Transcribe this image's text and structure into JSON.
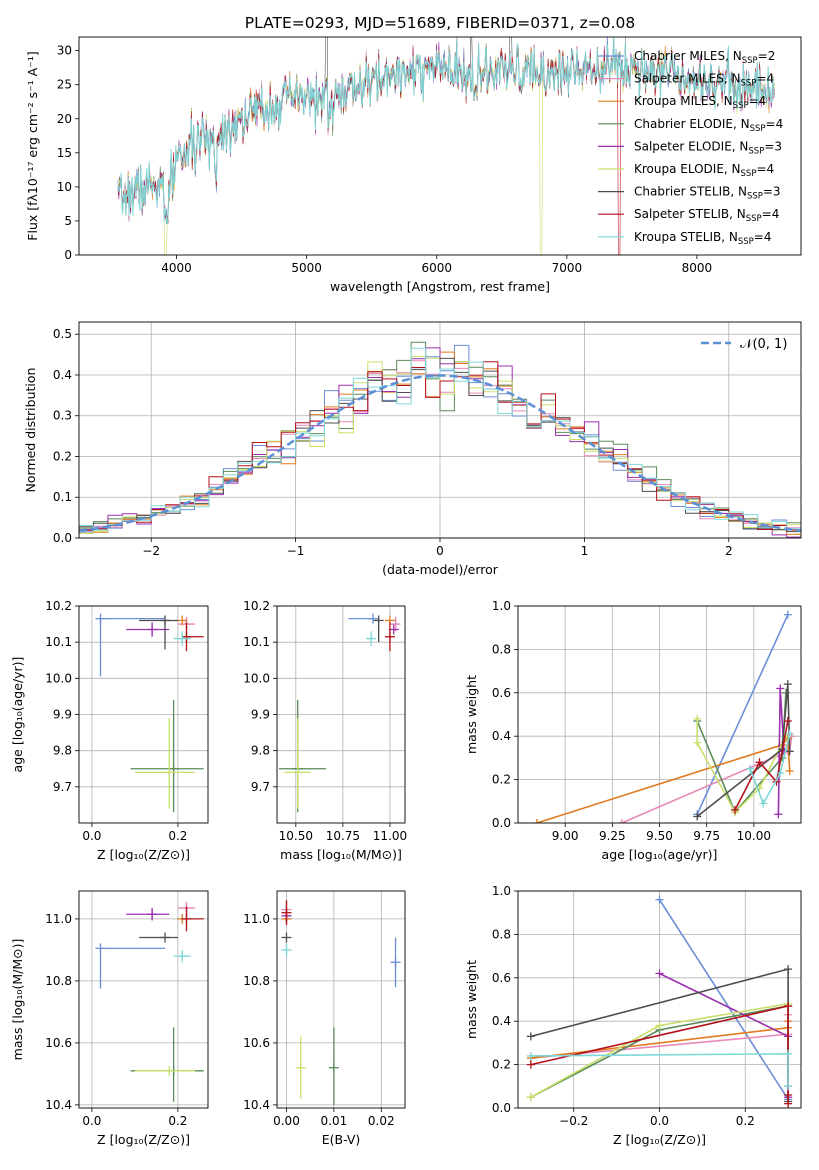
{
  "figure_title": "PLATE=0293, MJD=51689, FIBERID=0371, z=0.08",
  "colors": {
    "Chabrier MILES": "#6a8fd8",
    "Salpeter MILES": "#e88ab8",
    "Kroupa MILES": "#e07b20",
    "Chabrier ELODIE": "#5a8a5a",
    "Salpeter ELODIE": "#9b2fae",
    "Kroupa ELODIE": "#c8e06a",
    "Chabrier STELIB": "#4d4d4d",
    "Salpeter STELIB": "#b3121b",
    "Kroupa STELIB": "#7fd8d8",
    "gauss": "#5b8fd6"
  },
  "chart_data": [
    {
      "id": "spectrum",
      "type": "line",
      "title": "PLATE=0293, MJD=51689, FIBERID=0371, z=0.08",
      "xlabel": "wavelength [Angstrom, rest frame]",
      "ylabel": "Flux [fλ10⁻¹⁷ erg cm⁻² s⁻¹ A⁻¹]",
      "xlim": [
        3250,
        8800
      ],
      "ylim": [
        0,
        32
      ],
      "xticks": [
        4000,
        5000,
        6000,
        7000,
        8000
      ],
      "yticks": [
        0,
        5,
        10,
        15,
        20,
        25,
        30
      ],
      "grid": false,
      "legend_position": "right",
      "continuum": [
        [
          3550,
          8
        ],
        [
          3700,
          9.5
        ],
        [
          3850,
          10.5
        ],
        [
          3950,
          10
        ],
        [
          4000,
          14
        ],
        [
          4200,
          17
        ],
        [
          4300,
          17
        ],
        [
          4400,
          19
        ],
        [
          4600,
          21
        ],
        [
          4800,
          22.5
        ],
        [
          5000,
          23
        ],
        [
          5200,
          23
        ],
        [
          5400,
          24.5
        ],
        [
          5600,
          26
        ],
        [
          5800,
          27.5
        ],
        [
          6000,
          27.5
        ],
        [
          6200,
          26
        ],
        [
          6400,
          26.5
        ],
        [
          6600,
          27
        ],
        [
          6800,
          26.5
        ],
        [
          7000,
          27
        ],
        [
          7200,
          28
        ],
        [
          7500,
          27.5
        ],
        [
          7800,
          27
        ],
        [
          8100,
          25.5
        ],
        [
          8400,
          24.5
        ],
        [
          8600,
          24
        ]
      ],
      "series": [
        {
          "name": "Chabrier MILES, N_SSP=2",
          "label_main": "Chabrier MILES, N",
          "label_sub": "SSP",
          "label_tail": "=2"
        },
        {
          "name": "Salpeter MILES, N_SSP=4",
          "label_main": "Salpeter MILES, N",
          "label_sub": "SSP",
          "label_tail": "=4"
        },
        {
          "name": "Kroupa MILES, N_SSP=4",
          "label_main": "Kroupa MILES, N",
          "label_sub": "SSP",
          "label_tail": "=4"
        },
        {
          "name": "Chabrier ELODIE, N_SSP=4",
          "label_main": "Chabrier ELODIE, N",
          "label_sub": "SSP",
          "label_tail": "=4"
        },
        {
          "name": "Salpeter ELODIE, N_SSP=3",
          "label_main": "Salpeter ELODIE, N",
          "label_sub": "SSP",
          "label_tail": "=3"
        },
        {
          "name": "Kroupa ELODIE, N_SSP=4",
          "label_main": "Kroupa ELODIE, N",
          "label_sub": "SSP",
          "label_tail": "=4"
        },
        {
          "name": "Chabrier STELIB, N_SSP=3",
          "label_main": "Chabrier STELIB, N",
          "label_sub": "SSP",
          "label_tail": "=3"
        },
        {
          "name": "Salpeter STELIB, N_SSP=4",
          "label_main": "Salpeter STELIB, N",
          "label_sub": "SSP",
          "label_tail": "=4"
        },
        {
          "name": "Kroupa STELIB, N_SSP=4",
          "label_main": "Kroupa STELIB, N",
          "label_sub": "SSP",
          "label_tail": "=4"
        }
      ]
    },
    {
      "id": "residuals",
      "type": "histogram",
      "xlabel": "(data-model)/error",
      "ylabel": "Normed distribution",
      "xlim": [
        -2.5,
        2.5
      ],
      "ylim": [
        0,
        0.53
      ],
      "xticks": [
        -2,
        -1,
        0,
        1,
        2
      ],
      "yticks": [
        0.0,
        0.1,
        0.2,
        0.3,
        0.4,
        0.5
      ],
      "grid": true,
      "legend_position": "top-right",
      "legend_label": "𝒩(0, 1)",
      "bin_width": 0.1,
      "gauss": {
        "mu": 0,
        "sigma": 1
      }
    },
    {
      "id": "age_vs_Z",
      "type": "scatter",
      "xlabel": "Z [log₁₀(Z/Z⊙)]",
      "ylabel": "age  [log₁₀(age/yr)]",
      "xlim": [
        -0.03,
        0.27
      ],
      "ylim": [
        9.6,
        10.2
      ],
      "xticks": [
        0.0,
        0.2
      ],
      "yticks": [
        9.7,
        9.8,
        9.9,
        10.0,
        10.1,
        10.2
      ],
      "grid": true,
      "points": [
        {
          "model": "Chabrier MILES",
          "x": 0.02,
          "xerr": [
            0.0,
            0.15
          ],
          "y": 10.165,
          "yerr": [
            0.16,
            0.0
          ]
        },
        {
          "model": "Salpeter MILES",
          "x": 0.22,
          "xerr": [
            0.02,
            0.02
          ],
          "y": 10.15,
          "yerr": [
            0.02,
            0.02
          ]
        },
        {
          "model": "Kroupa MILES",
          "x": 0.21,
          "xerr": [
            0.0,
            0.0
          ],
          "y": 10.16,
          "yerr": [
            0.0,
            0.0
          ]
        },
        {
          "model": "Chabrier ELODIE",
          "x": 0.19,
          "xerr": [
            0.1,
            0.07
          ],
          "y": 9.75,
          "yerr": [
            0.12,
            0.19
          ]
        },
        {
          "model": "Salpeter ELODIE",
          "x": 0.14,
          "xerr": [
            0.06,
            0.04
          ],
          "y": 10.135,
          "yerr": [
            0.02,
            0.02
          ]
        },
        {
          "model": "Kroupa ELODIE",
          "x": 0.18,
          "xerr": [
            0.08,
            0.06
          ],
          "y": 9.74,
          "yerr": [
            0.1,
            0.15
          ]
        },
        {
          "model": "Chabrier STELIB",
          "x": 0.17,
          "xerr": [
            0.06,
            0.03
          ],
          "y": 10.16,
          "yerr": [
            0.08,
            0.0
          ]
        },
        {
          "model": "Salpeter STELIB",
          "x": 0.22,
          "xerr": [
            0.0,
            0.04
          ],
          "y": 10.115,
          "yerr": [
            0.04,
            0.04
          ]
        },
        {
          "model": "Kroupa STELIB",
          "x": 0.21,
          "xerr": [
            0.02,
            0.02
          ],
          "y": 10.11,
          "yerr": [
            0.02,
            0.02
          ]
        }
      ]
    },
    {
      "id": "age_vs_mass",
      "type": "scatter",
      "xlabel": "mass [log₁₀(M/M⊙)]",
      "ylabel": "",
      "xlim": [
        10.4,
        11.08
      ],
      "ylim": [
        9.6,
        10.2
      ],
      "xticks": [
        10.5,
        10.75,
        11.0
      ],
      "yticks": [
        9.7,
        9.8,
        9.9,
        10.0,
        10.1,
        10.2
      ],
      "grid": true,
      "points": [
        {
          "model": "Chabrier MILES",
          "x": 10.91,
          "xerr": [
            0.13,
            0.0
          ],
          "y": 10.165,
          "yerr": [
            0.0,
            0.0
          ]
        },
        {
          "model": "Salpeter MILES",
          "x": 11.03,
          "xerr": [
            0.0,
            0.02
          ],
          "y": 10.15,
          "yerr": [
            0.02,
            0.02
          ]
        },
        {
          "model": "Kroupa MILES",
          "x": 11.0,
          "xerr": [
            0.0,
            0.0
          ],
          "y": 10.16,
          "yerr": [
            0.0,
            0.0
          ]
        },
        {
          "model": "Chabrier ELODIE",
          "x": 10.51,
          "xerr": [
            0.1,
            0.15
          ],
          "y": 9.75,
          "yerr": [
            0.12,
            0.19
          ]
        },
        {
          "model": "Salpeter ELODIE",
          "x": 11.02,
          "xerr": [
            0.0,
            0.0
          ],
          "y": 10.135,
          "yerr": [
            0.0,
            0.0
          ]
        },
        {
          "model": "Kroupa ELODIE",
          "x": 10.51,
          "xerr": [
            0.07,
            0.07
          ],
          "y": 9.74,
          "yerr": [
            0.1,
            0.15
          ]
        },
        {
          "model": "Chabrier STELIB",
          "x": 10.94,
          "xerr": [
            0.0,
            0.0
          ],
          "y": 10.16,
          "yerr": [
            0.06,
            0.0
          ]
        },
        {
          "model": "Salpeter STELIB",
          "x": 11.0,
          "xerr": [
            0.01,
            0.01
          ],
          "y": 10.115,
          "yerr": [
            0.04,
            0.04
          ]
        },
        {
          "model": "Kroupa STELIB",
          "x": 10.9,
          "xerr": [
            0.02,
            0.02
          ],
          "y": 10.11,
          "yerr": [
            0.02,
            0.02
          ]
        }
      ]
    },
    {
      "id": "weight_vs_age",
      "type": "line",
      "xlabel": "age  [log₁₀(age/yr)]",
      "ylabel": "mass weight",
      "xlim": [
        8.75,
        10.25
      ],
      "ylim": [
        0,
        1.0
      ],
      "xticks": [
        9.0,
        9.25,
        9.5,
        9.75,
        10.0
      ],
      "yticks": [
        0.0,
        0.2,
        0.4,
        0.6,
        0.8,
        1.0
      ],
      "grid": true,
      "series": [
        {
          "model": "Chabrier MILES",
          "x": [
            9.7,
            10.18
          ],
          "y": [
            0.04,
            0.96
          ]
        },
        {
          "model": "Salpeter MILES",
          "x": [
            9.3,
            10.18,
            10.2,
            10.19
          ],
          "y": [
            0.0,
            0.33,
            0.4,
            0.33
          ]
        },
        {
          "model": "Kroupa MILES",
          "x": [
            8.85,
            10.15,
            10.18,
            10.19
          ],
          "y": [
            0.0,
            0.36,
            0.39,
            0.24
          ]
        },
        {
          "model": "Chabrier ELODIE",
          "x": [
            9.7,
            9.9,
            10.15,
            10.17
          ],
          "y": [
            0.47,
            0.05,
            0.3,
            0.6
          ]
        },
        {
          "model": "Salpeter ELODIE",
          "x": [
            10.13,
            10.14,
            10.16
          ],
          "y": [
            0.04,
            0.62,
            0.33
          ]
        },
        {
          "model": "Kroupa ELODIE",
          "x": [
            9.7,
            9.7,
            9.9,
            10.03,
            10.17
          ],
          "y": [
            0.48,
            0.37,
            0.05,
            0.16,
            0.4
          ]
        },
        {
          "model": "Chabrier STELIB",
          "x": [
            9.7,
            10.15,
            10.18,
            10.19
          ],
          "y": [
            0.03,
            0.34,
            0.64,
            0.33
          ]
        },
        {
          "model": "Salpeter STELIB",
          "x": [
            9.9,
            10.03,
            10.12,
            10.18
          ],
          "y": [
            0.06,
            0.28,
            0.19,
            0.47
          ]
        },
        {
          "model": "Kroupa STELIB",
          "x": [
            9.98,
            10.05,
            10.14,
            10.19
          ],
          "y": [
            0.25,
            0.09,
            0.23,
            0.41
          ]
        }
      ]
    },
    {
      "id": "mass_vs_Z",
      "type": "scatter",
      "xlabel": "Z [log₁₀(Z/Z⊙)]",
      "ylabel": "mass [log₁₀(M/M⊙)]",
      "xlim": [
        -0.03,
        0.27
      ],
      "ylim": [
        10.39,
        11.09
      ],
      "xticks": [
        0.0,
        0.2
      ],
      "yticks": [
        10.4,
        10.6,
        10.8,
        11.0
      ],
      "grid": true,
      "points": [
        {
          "model": "Chabrier MILES",
          "x": 0.02,
          "xerr": [
            0.0,
            0.15
          ],
          "y": 10.905,
          "yerr": [
            0.13,
            0.0
          ]
        },
        {
          "model": "Salpeter MILES",
          "x": 0.22,
          "xerr": [
            0.02,
            0.02
          ],
          "y": 11.035,
          "yerr": [
            0.02,
            0.02
          ]
        },
        {
          "model": "Kroupa MILES",
          "x": 0.21,
          "xerr": [
            0.0,
            0.0
          ],
          "y": 11.0,
          "yerr": [
            0.0,
            0.0
          ]
        },
        {
          "model": "Chabrier ELODIE",
          "x": 0.19,
          "xerr": [
            0.1,
            0.07
          ],
          "y": 10.51,
          "yerr": [
            0.1,
            0.14
          ]
        },
        {
          "model": "Salpeter ELODIE",
          "x": 0.14,
          "xerr": [
            0.06,
            0.04
          ],
          "y": 11.015,
          "yerr": [
            0.02,
            0.02
          ]
        },
        {
          "model": "Kroupa ELODIE",
          "x": 0.18,
          "xerr": [
            0.08,
            0.06
          ],
          "y": 10.51,
          "yerr": [
            0.0,
            0.0
          ]
        },
        {
          "model": "Chabrier STELIB",
          "x": 0.17,
          "xerr": [
            0.06,
            0.03
          ],
          "y": 10.94,
          "yerr": [
            0.0,
            0.0
          ]
        },
        {
          "model": "Salpeter STELIB",
          "x": 0.22,
          "xerr": [
            0.0,
            0.04
          ],
          "y": 11.0,
          "yerr": [
            0.04,
            0.04
          ]
        },
        {
          "model": "Kroupa STELIB",
          "x": 0.21,
          "xerr": [
            0.02,
            0.02
          ],
          "y": 10.88,
          "yerr": [
            0.02,
            0.02
          ]
        }
      ]
    },
    {
      "id": "mass_vs_ebv",
      "type": "scatter",
      "xlabel": "E(B-V)",
      "ylabel": "",
      "xlim": [
        -0.002,
        0.025
      ],
      "ylim": [
        10.39,
        11.09
      ],
      "xticks": [
        0.0,
        0.01,
        0.02
      ],
      "yticks": [
        10.4,
        10.6,
        10.8,
        11.0
      ],
      "grid": true,
      "points": [
        {
          "model": "Chabrier MILES",
          "x": 0.023,
          "xerr": [
            0.0,
            0.0
          ],
          "y": 10.86,
          "yerr": [
            0.08,
            0.08
          ]
        },
        {
          "model": "Salpeter MILES",
          "x": 0.0,
          "xerr": [
            0.0,
            0.0
          ],
          "y": 11.03,
          "yerr": [
            0.03,
            0.03
          ]
        },
        {
          "model": "Kroupa MILES",
          "x": 0.0,
          "xerr": [
            0.0,
            0.0
          ],
          "y": 11.0,
          "yerr": [
            0.0,
            0.0
          ]
        },
        {
          "model": "Chabrier ELODIE",
          "x": 0.01,
          "xerr": [
            0.0,
            0.0
          ],
          "y": 10.52,
          "yerr": [
            0.12,
            0.13
          ]
        },
        {
          "model": "Salpeter ELODIE",
          "x": 0.0,
          "xerr": [
            0.0,
            0.0
          ],
          "y": 11.01,
          "yerr": [
            0.02,
            0.02
          ]
        },
        {
          "model": "Kroupa ELODIE",
          "x": 0.003,
          "xerr": [
            0.0,
            0.0
          ],
          "y": 10.52,
          "yerr": [
            0.1,
            0.1
          ]
        },
        {
          "model": "Chabrier STELIB",
          "x": 0.0,
          "xerr": [
            0.0,
            0.0
          ],
          "y": 10.94,
          "yerr": [
            0.0,
            0.0
          ]
        },
        {
          "model": "Salpeter STELIB",
          "x": 0.0,
          "xerr": [
            0.0,
            0.0
          ],
          "y": 11.02,
          "yerr": [
            0.04,
            0.04
          ]
        },
        {
          "model": "Kroupa STELIB",
          "x": 0.0,
          "xerr": [
            0.0,
            0.0
          ],
          "y": 10.9,
          "yerr": [
            0.02,
            0.02
          ]
        }
      ]
    },
    {
      "id": "weight_vs_Z",
      "type": "line",
      "xlabel": "Z [log₁₀(Z/Z⊙)]",
      "ylabel": "mass weight",
      "xlim": [
        -0.33,
        0.33
      ],
      "ylim": [
        0,
        1.0
      ],
      "xticks": [
        -0.2,
        0.0,
        0.2
      ],
      "yticks": [
        0.0,
        0.2,
        0.4,
        0.6,
        0.8,
        1.0
      ],
      "grid": true,
      "series": [
        {
          "model": "Chabrier MILES",
          "x": [
            0.0,
            0.3
          ],
          "y": [
            0.96,
            0.04
          ]
        },
        {
          "model": "Salpeter MILES",
          "x": [
            -0.3,
            0.3,
            0.3
          ],
          "y": [
            0.23,
            0.34,
            0.43
          ]
        },
        {
          "model": "Kroupa MILES",
          "x": [
            -0.3,
            0.3,
            0.3
          ],
          "y": [
            0.23,
            0.37,
            0.4
          ]
        },
        {
          "model": "Chabrier ELODIE",
          "x": [
            -0.3,
            0.0,
            0.3,
            0.3
          ],
          "y": [
            0.05,
            0.36,
            0.47,
            0.1
          ]
        },
        {
          "model": "Salpeter ELODIE",
          "x": [
            0.0,
            0.3,
            0.3
          ],
          "y": [
            0.62,
            0.33,
            0.05
          ]
        },
        {
          "model": "Kroupa ELODIE",
          "x": [
            -0.3,
            0.0,
            0.3
          ],
          "y": [
            0.05,
            0.38,
            0.48
          ]
        },
        {
          "model": "Chabrier STELIB",
          "x": [
            -0.3,
            0.3,
            0.3
          ],
          "y": [
            0.33,
            0.64,
            0.03
          ]
        },
        {
          "model": "Salpeter STELIB",
          "x": [
            -0.3,
            0.3,
            0.3,
            0.3
          ],
          "y": [
            0.2,
            0.47,
            0.06,
            0.02
          ]
        },
        {
          "model": "Kroupa STELIB",
          "x": [
            -0.3,
            0.3,
            0.3
          ],
          "y": [
            0.24,
            0.25,
            0.1
          ]
        }
      ]
    }
  ]
}
